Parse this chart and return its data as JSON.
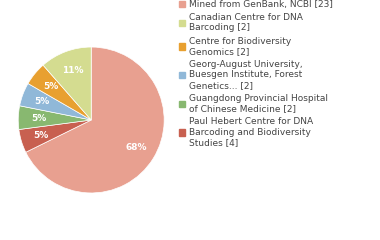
{
  "legend_labels": [
    "Mined from GenBank, NCBI [23]",
    "Paul Hebert Centre for DNA\nBarcoding and Biodiversity\nStudies [4]",
    "Guangdong Provincial Hospital\nof Chinese Medicine [2]",
    "Georg-August University,\nBuesgen Institute, Forest\nGenetics... [2]",
    "Centre for Biodiversity\nGenomics [2]",
    "Canadian Centre for DNA\nBarcoding [2]"
  ],
  "values": [
    65,
    5,
    5,
    5,
    5,
    11
  ],
  "colors": [
    "#E8A090",
    "#C86050",
    "#88B870",
    "#90B8D8",
    "#E8A030",
    "#D4DC90"
  ],
  "background_color": "#ffffff",
  "text_color": "#444444",
  "fontsize": 6.5
}
